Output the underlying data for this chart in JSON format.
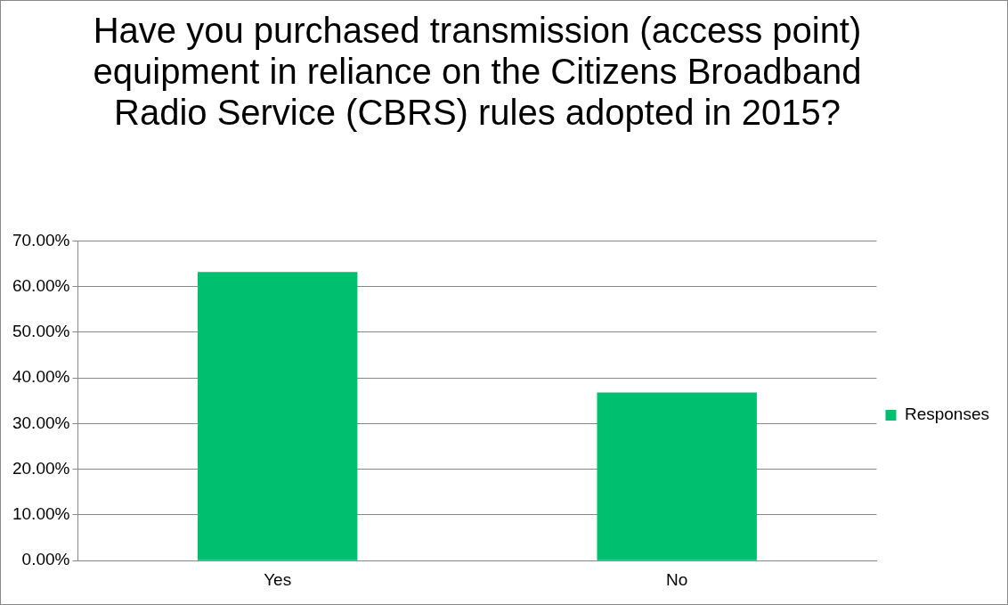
{
  "chart_data": {
    "type": "bar",
    "title": "Have you purchased transmission (access point) equipment in reliance on the Citizens Broadband Radio Service (CBRS) rules adopted in 2015?",
    "categories": [
      "Yes",
      "No"
    ],
    "series": [
      {
        "name": "Responses",
        "color": "#00bf6f",
        "values": [
          63.2,
          36.8
        ]
      }
    ],
    "ylim": [
      0,
      70
    ],
    "yticks": [
      {
        "value": 0,
        "label": "0.00%"
      },
      {
        "value": 10,
        "label": "10.00%"
      },
      {
        "value": 20,
        "label": "20.00%"
      },
      {
        "value": 30,
        "label": "30.00%"
      },
      {
        "value": 40,
        "label": "40.00%"
      },
      {
        "value": 50,
        "label": "50.00%"
      },
      {
        "value": 60,
        "label": "60.00%"
      },
      {
        "value": 70,
        "label": "70.00%"
      }
    ],
    "grid": "y",
    "legend": "right"
  }
}
